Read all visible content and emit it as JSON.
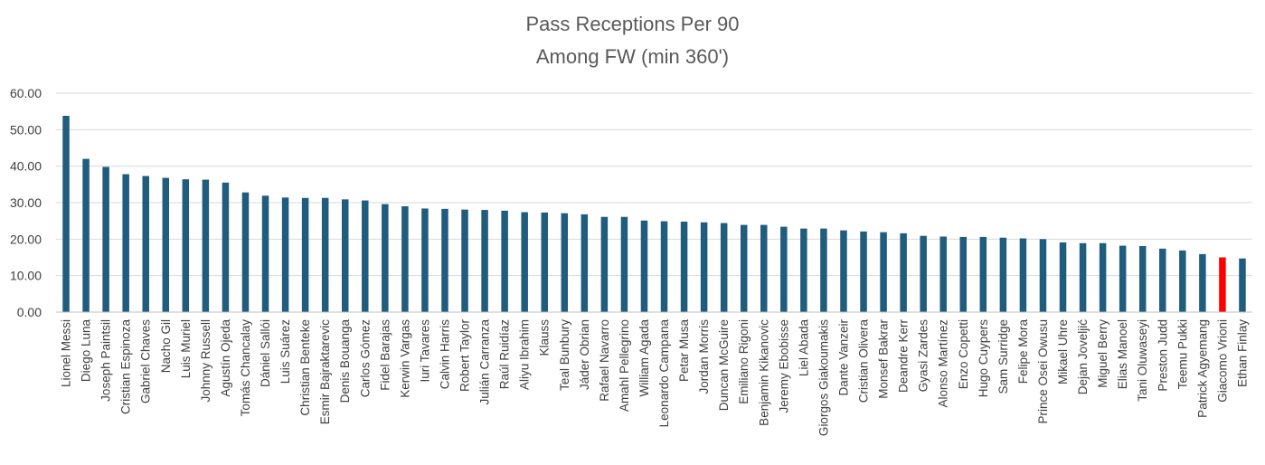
{
  "chart_data": {
    "type": "bar",
    "title_lines": [
      "Pass Receptions Per 90",
      "Among FW (min 360')"
    ],
    "xlabel": "",
    "ylabel": "",
    "ylim": [
      0,
      60
    ],
    "yticks": [
      "0.00",
      "10.00",
      "20.00",
      "30.00",
      "40.00",
      "50.00",
      "60.00"
    ],
    "grid": true,
    "legend": "none",
    "colors": {
      "default": "#1F5C7E",
      "highlight": "#FF0000",
      "grid": "#D9D9D9",
      "axis": "#BFBFBF"
    },
    "highlight_category": "Giacomo Vrioni",
    "categories": [
      "Lionel Messi",
      "Diego Luna",
      "Joseph Paintsil",
      "Cristian Espinoza",
      "Gabriel Chaves",
      "Nacho Gil",
      "Luis Muriel",
      "Johnny Russell",
      "Agustín Ojeda",
      "Tomás Chancalay",
      "Dániel Sallói",
      "Luis Suárez",
      "Christian Benteke",
      "Esmir Bajraktarevic",
      "Denis Bouanga",
      "Carlos Gómez",
      "Fidel Barajas",
      "Kerwin Vargas",
      "Iuri Tavares",
      "Calvin Harris",
      "Robert Taylor",
      "Julián Carranza",
      "Raúl Ruidíaz",
      "Aliyu Ibrahim",
      "Klauss",
      "Teal Bunbury",
      "Jáder Obrian",
      "Rafael Navarro",
      "Amahl Pellegrino",
      "William Agada",
      "Leonardo Campana",
      "Petar Musa",
      "Jordan Morris",
      "Duncan McGuire",
      "Emiliano Rigoni",
      "Benjamin Kikanovic",
      "Jeremy Ebobisse",
      "Liel Abada",
      "Giorgos Giakoumakis",
      "Dante Vanzeir",
      "Cristian Olivera",
      "Monsef Bakrar",
      "Deandre Kerr",
      "Gyasi Zardes",
      "Alonso Martínez",
      "Enzo Copetti",
      "Hugo Cuypers",
      "Sam Surridge",
      "Felipe Mora",
      "Prince Osei Owusu",
      "Mikael Uhre",
      "Dejan Joveljić",
      "Miguel Berry",
      "Elias Manoel",
      "Tani Oluwaseyi",
      "Preston Judd",
      "Teemu Pukki",
      "Patrick Agyemang",
      "Giacomo Vrioni",
      "Ethan Finlay"
    ],
    "values": [
      53.8,
      42.0,
      39.8,
      37.8,
      37.3,
      36.8,
      36.4,
      36.3,
      35.5,
      32.8,
      31.9,
      31.4,
      31.3,
      31.3,
      30.9,
      30.6,
      29.6,
      29.0,
      28.4,
      28.3,
      28.1,
      28.0,
      27.8,
      27.4,
      27.3,
      27.1,
      26.8,
      26.1,
      26.1,
      25.1,
      24.9,
      24.8,
      24.6,
      24.4,
      23.9,
      23.9,
      23.4,
      22.9,
      22.9,
      22.4,
      22.1,
      21.9,
      21.6,
      20.9,
      20.7,
      20.6,
      20.6,
      20.4,
      20.2,
      20.0,
      19.1,
      18.9,
      18.9,
      18.2,
      18.1,
      17.4,
      16.9,
      15.9,
      15.0,
      14.7
    ]
  }
}
